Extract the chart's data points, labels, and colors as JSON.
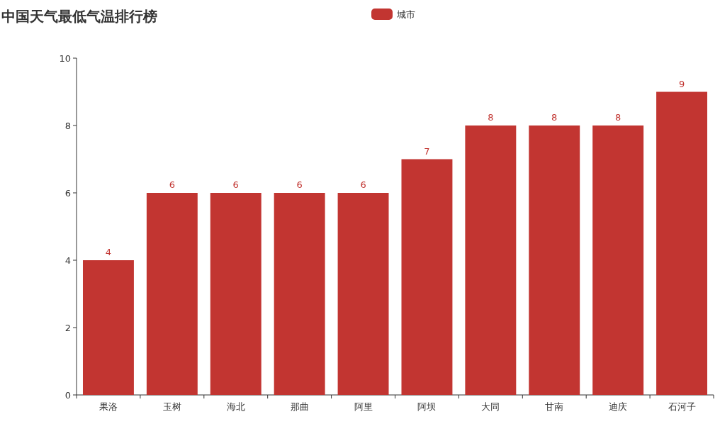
{
  "chart_data": {
    "type": "bar",
    "title": "中国天气最低气温排行榜",
    "categories": [
      "果洛",
      "玉树",
      "海北",
      "那曲",
      "阿里",
      "阿坝",
      "大同",
      "甘南",
      "迪庆",
      "石河子"
    ],
    "series": [
      {
        "name": "城市",
        "color": "#c23531",
        "values": [
          4,
          6,
          6,
          6,
          6,
          7,
          8,
          8,
          8,
          9
        ]
      }
    ],
    "ylim": [
      0,
      10
    ],
    "yticks": [
      0,
      2,
      4,
      6,
      8,
      10
    ],
    "data_labels": true,
    "legend": "top",
    "grid": false
  }
}
